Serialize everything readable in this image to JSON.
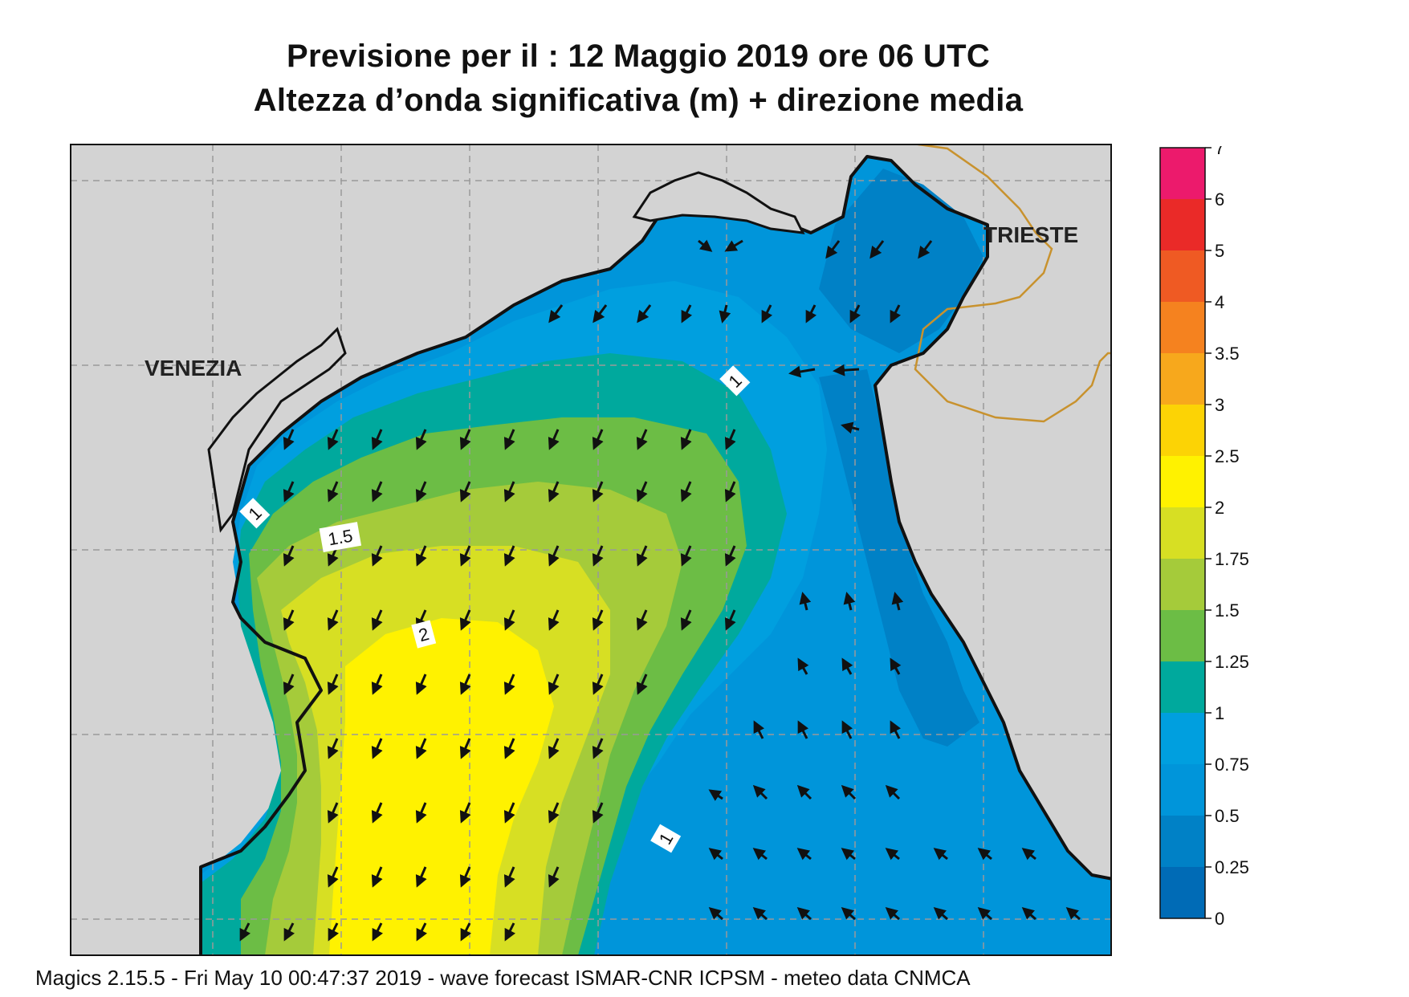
{
  "title": {
    "line1": "Previsione per il  :  12   Maggio  2019   ore 06 UTC",
    "line2": "Altezza d’onda significativa (m) + direzione media"
  },
  "map": {
    "city_labels": [
      "VENEZIA",
      "TRIESTE"
    ],
    "contour_labels": [
      "1",
      "1.5",
      "2",
      "1",
      "1"
    ],
    "colors": {
      "land": "#d3d3d3",
      "coast": "#111111",
      "border": "#c8922e",
      "grid": "#9a9a9a",
      "arrow": "#111111"
    }
  },
  "colorbar": {
    "ticks": [
      "7",
      "6",
      "5",
      "4",
      "3.5",
      "3",
      "2.5",
      "2",
      "1.75",
      "1.5",
      "1.25",
      "1",
      "0.75",
      "0.5",
      "0.25",
      "0"
    ],
    "colors": [
      "#ec1a6c",
      "#ea2a28",
      "#ef5a23",
      "#f5821f",
      "#f7a81c",
      "#fcd305",
      "#fff200",
      "#d7df23",
      "#a5cb3a",
      "#6cbd45",
      "#00a99d",
      "#009fdf",
      "#0095da",
      "#0081c6",
      "#006bb6"
    ]
  },
  "footer": "Magics 2.15.5 - Fri May 10 00:47:37 2019 - wave forecast  ISMAR-CNR  ICPSM - meteo data   CNMCA"
}
